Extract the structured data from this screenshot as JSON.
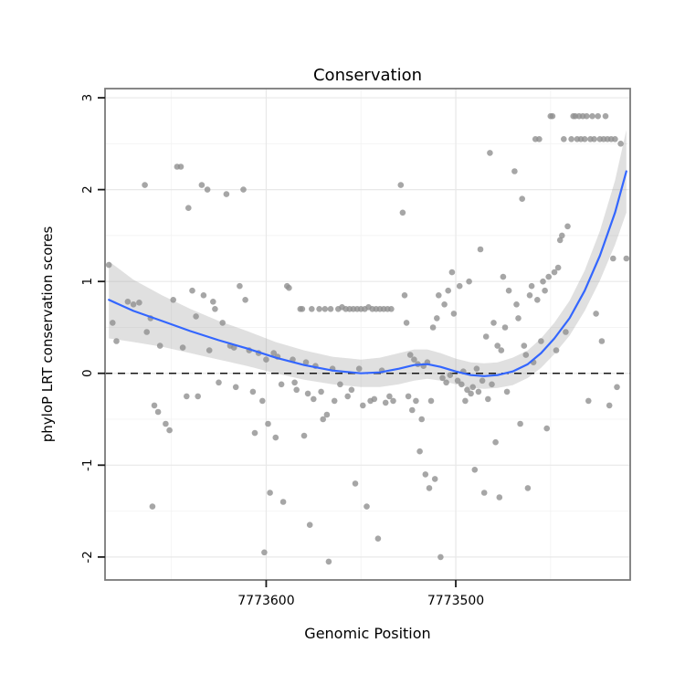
{
  "figure": {
    "title": "Conservation",
    "xlabel": "Genomic Position",
    "ylabel": "phyloP LRT conservation scores"
  },
  "chart_data": {
    "type": "scatter",
    "title": "Conservation",
    "xlabel": "Genomic Position",
    "ylabel": "phyloP LRT conservation scores",
    "x_reversed": true,
    "xlim": [
      7773685,
      7773408
    ],
    "ylim": [
      -2.25,
      3.1
    ],
    "grid": true,
    "legend_position": "none",
    "x_ticks": [
      {
        "value": 7773600,
        "label": "7773600"
      },
      {
        "value": 7773500,
        "label": "7773500"
      }
    ],
    "x_minor_ticks": [
      7773650,
      7773550,
      7773450
    ],
    "y_ticks": [
      {
        "value": -2,
        "label": "-2"
      },
      {
        "value": -1,
        "label": "-1"
      },
      {
        "value": 0,
        "label": "0"
      },
      {
        "value": 1,
        "label": "1"
      },
      {
        "value": 2,
        "label": "2"
      },
      {
        "value": 3,
        "label": "3"
      }
    ],
    "y_minor_ticks": [
      -1.5,
      -0.5,
      0.5,
      1.5,
      2.5
    ],
    "hline": {
      "y": 0,
      "style": "dashed",
      "color": "#141414"
    },
    "colors": {
      "point": "#909090",
      "smooth_line": "#3366FF",
      "ribbon": "#999999",
      "grid_major": "#e8e8e8",
      "grid_minor": "#f4f4f4",
      "panel_border": "#7a7a7a",
      "tick": "#1a1a1a",
      "tick_label": "#000000"
    },
    "smooth": {
      "x": [
        7773683,
        7773670,
        7773655,
        7773640,
        7773625,
        7773610,
        7773595,
        7773580,
        7773565,
        7773550,
        7773540,
        7773530,
        7773522,
        7773515,
        7773508,
        7773500,
        7773492,
        7773485,
        7773478,
        7773470,
        7773462,
        7773455,
        7773448,
        7773440,
        7773432,
        7773424,
        7773416,
        7773410
      ],
      "y": [
        0.8,
        0.68,
        0.57,
        0.46,
        0.36,
        0.27,
        0.17,
        0.09,
        0.03,
        0.0,
        0.01,
        0.05,
        0.09,
        0.1,
        0.07,
        0.02,
        -0.02,
        -0.03,
        -0.02,
        0.02,
        0.1,
        0.22,
        0.38,
        0.6,
        0.9,
        1.28,
        1.75,
        2.2
      ],
      "band": [
        0.42,
        0.34,
        0.28,
        0.24,
        0.21,
        0.19,
        0.17,
        0.16,
        0.15,
        0.15,
        0.16,
        0.17,
        0.17,
        0.16,
        0.15,
        0.14,
        0.14,
        0.14,
        0.14,
        0.15,
        0.15,
        0.16,
        0.17,
        0.19,
        0.22,
        0.27,
        0.35,
        0.45
      ]
    },
    "points": [
      [
        7773683,
        1.18
      ],
      [
        7773681,
        0.55
      ],
      [
        7773679,
        0.35
      ],
      [
        7773673,
        0.78
      ],
      [
        7773670,
        0.75
      ],
      [
        7773667,
        0.77
      ],
      [
        7773664,
        2.05
      ],
      [
        7773663,
        0.45
      ],
      [
        7773661,
        0.6
      ],
      [
        7773659,
        -0.35
      ],
      [
        7773657,
        -0.42
      ],
      [
        7773656,
        0.3
      ],
      [
        7773653,
        -0.55
      ],
      [
        7773651,
        -0.62
      ],
      [
        7773660,
        -1.45
      ],
      [
        7773649,
        0.8
      ],
      [
        7773647,
        2.25
      ],
      [
        7773645,
        2.25
      ],
      [
        7773644,
        0.28
      ],
      [
        7773642,
        -0.25
      ],
      [
        7773641,
        1.8
      ],
      [
        7773639,
        0.9
      ],
      [
        7773637,
        0.62
      ],
      [
        7773636,
        -0.25
      ],
      [
        7773634,
        2.05
      ],
      [
        7773633,
        0.85
      ],
      [
        7773631,
        2.0
      ],
      [
        7773630,
        0.25
      ],
      [
        7773628,
        0.78
      ],
      [
        7773627,
        0.7
      ],
      [
        7773625,
        -0.1
      ],
      [
        7773623,
        0.55
      ],
      [
        7773621,
        1.95
      ],
      [
        7773619,
        0.3
      ],
      [
        7773617,
        0.28
      ],
      [
        7773616,
        -0.15
      ],
      [
        7773614,
        0.95
      ],
      [
        7773612,
        2.0
      ],
      [
        7773611,
        0.8
      ],
      [
        7773609,
        0.25
      ],
      [
        7773607,
        -0.2
      ],
      [
        7773606,
        -0.65
      ],
      [
        7773604,
        0.22
      ],
      [
        7773602,
        -0.3
      ],
      [
        7773601,
        -1.95
      ],
      [
        7773600,
        0.15
      ],
      [
        7773599,
        -0.55
      ],
      [
        7773598,
        -1.3
      ],
      [
        7773596,
        0.22
      ],
      [
        7773595,
        -0.7
      ],
      [
        7773594,
        0.18
      ],
      [
        7773592,
        -0.12
      ],
      [
        7773591,
        -1.4
      ],
      [
        7773589,
        0.95
      ],
      [
        7773588,
        0.93
      ],
      [
        7773586,
        0.15
      ],
      [
        7773585,
        -0.1
      ],
      [
        7773584,
        -0.18
      ],
      [
        7773582,
        0.7
      ],
      [
        7773581,
        0.7
      ],
      [
        7773580,
        -0.68
      ],
      [
        7773579,
        0.12
      ],
      [
        7773578,
        -0.22
      ],
      [
        7773577,
        -1.65
      ],
      [
        7773576,
        0.7
      ],
      [
        7773575,
        -0.28
      ],
      [
        7773574,
        0.08
      ],
      [
        7773572,
        0.7
      ],
      [
        7773571,
        -0.2
      ],
      [
        7773570,
        -0.5
      ],
      [
        7773569,
        0.7
      ],
      [
        7773568,
        -0.45
      ],
      [
        7773567,
        -2.05
      ],
      [
        7773566,
        0.7
      ],
      [
        7773565,
        0.05
      ],
      [
        7773564,
        -0.3
      ],
      [
        7773562,
        0.7
      ],
      [
        7773561,
        -0.12
      ],
      [
        7773560,
        0.72
      ],
      [
        7773558,
        0.7
      ],
      [
        7773557,
        -0.25
      ],
      [
        7773556,
        0.7
      ],
      [
        7773555,
        -0.18
      ],
      [
        7773554,
        0.7
      ],
      [
        7773553,
        -1.2
      ],
      [
        7773552,
        0.7
      ],
      [
        7773551,
        0.05
      ],
      [
        7773550,
        0.7
      ],
      [
        7773549,
        -0.35
      ],
      [
        7773548,
        0.7
      ],
      [
        7773547,
        -1.45
      ],
      [
        7773546,
        0.72
      ],
      [
        7773545,
        -0.3
      ],
      [
        7773544,
        0.7
      ],
      [
        7773543,
        -0.28
      ],
      [
        7773542,
        0.7
      ],
      [
        7773541,
        -1.8
      ],
      [
        7773540,
        0.7
      ],
      [
        7773539,
        0.03
      ],
      [
        7773538,
        0.7
      ],
      [
        7773537,
        -0.32
      ],
      [
        7773536,
        0.7
      ],
      [
        7773535,
        -0.25
      ],
      [
        7773534,
        0.7
      ],
      [
        7773533,
        -0.3
      ],
      [
        7773529,
        2.05
      ],
      [
        7773528,
        1.75
      ],
      [
        7773527,
        0.85
      ],
      [
        7773526,
        0.55
      ],
      [
        7773525,
        -0.25
      ],
      [
        7773524,
        0.2
      ],
      [
        7773523,
        -0.4
      ],
      [
        7773522,
        0.15
      ],
      [
        7773521,
        -0.3
      ],
      [
        7773520,
        0.1
      ],
      [
        7773519,
        -0.85
      ],
      [
        7773518,
        -0.5
      ],
      [
        7773517,
        0.08
      ],
      [
        7773516,
        -1.1
      ],
      [
        7773515,
        0.12
      ],
      [
        7773514,
        -1.25
      ],
      [
        7773513,
        -0.3
      ],
      [
        7773512,
        0.5
      ],
      [
        7773511,
        -1.15
      ],
      [
        7773510,
        0.6
      ],
      [
        7773509,
        0.85
      ],
      [
        7773508,
        -2.0
      ],
      [
        7773507,
        -0.05
      ],
      [
        7773506,
        0.75
      ],
      [
        7773505,
        -0.1
      ],
      [
        7773504,
        0.9
      ],
      [
        7773503,
        -0.02
      ],
      [
        7773502,
        1.1
      ],
      [
        7773501,
        0.65
      ],
      [
        7773499,
        -0.08
      ],
      [
        7773498,
        0.95
      ],
      [
        7773497,
        -0.12
      ],
      [
        7773496,
        0.02
      ],
      [
        7773495,
        -0.3
      ],
      [
        7773494,
        -0.18
      ],
      [
        7773493,
        1.0
      ],
      [
        7773492,
        -0.22
      ],
      [
        7773491,
        -0.15
      ],
      [
        7773490,
        -1.05
      ],
      [
        7773489,
        0.05
      ],
      [
        7773488,
        -0.2
      ],
      [
        7773487,
        1.35
      ],
      [
        7773486,
        -0.08
      ],
      [
        7773485,
        -1.3
      ],
      [
        7773484,
        0.4
      ],
      [
        7773483,
        -0.28
      ],
      [
        7773482,
        2.4
      ],
      [
        7773481,
        -0.12
      ],
      [
        7773480,
        0.55
      ],
      [
        7773479,
        -0.75
      ],
      [
        7773478,
        0.3
      ],
      [
        7773477,
        -1.35
      ],
      [
        7773476,
        0.25
      ],
      [
        7773475,
        1.05
      ],
      [
        7773474,
        0.5
      ],
      [
        7773473,
        -0.2
      ],
      [
        7773472,
        0.9
      ],
      [
        7773469,
        2.2
      ],
      [
        7773468,
        0.75
      ],
      [
        7773467,
        0.6
      ],
      [
        7773466,
        -0.55
      ],
      [
        7773465,
        1.9
      ],
      [
        7773464,
        0.3
      ],
      [
        7773463,
        0.2
      ],
      [
        7773462,
        -1.25
      ],
      [
        7773461,
        0.85
      ],
      [
        7773460,
        0.95
      ],
      [
        7773459,
        0.12
      ],
      [
        7773458,
        2.55
      ],
      [
        7773457,
        0.8
      ],
      [
        7773456,
        2.55
      ],
      [
        7773455,
        0.35
      ],
      [
        7773454,
        1.0
      ],
      [
        7773453,
        0.9
      ],
      [
        7773452,
        -0.6
      ],
      [
        7773451,
        1.05
      ],
      [
        7773450,
        2.8
      ],
      [
        7773449,
        2.8
      ],
      [
        7773448,
        1.1
      ],
      [
        7773447,
        0.25
      ],
      [
        7773446,
        1.15
      ],
      [
        7773445,
        1.45
      ],
      [
        7773444,
        1.5
      ],
      [
        7773443,
        2.55
      ],
      [
        7773442,
        0.45
      ],
      [
        7773441,
        1.6
      ],
      [
        7773439,
        2.55
      ],
      [
        7773438,
        2.8
      ],
      [
        7773437,
        2.8
      ],
      [
        7773436,
        2.55
      ],
      [
        7773435,
        2.8
      ],
      [
        7773434,
        2.55
      ],
      [
        7773433,
        2.8
      ],
      [
        7773432,
        2.55
      ],
      [
        7773431,
        2.8
      ],
      [
        7773430,
        -0.3
      ],
      [
        7773429,
        2.55
      ],
      [
        7773428,
        2.8
      ],
      [
        7773427,
        2.55
      ],
      [
        7773426,
        0.65
      ],
      [
        7773425,
        2.8
      ],
      [
        7773424,
        2.55
      ],
      [
        7773423,
        0.35
      ],
      [
        7773422,
        2.55
      ],
      [
        7773421,
        2.8
      ],
      [
        7773420,
        2.55
      ],
      [
        7773419,
        -0.35
      ],
      [
        7773418,
        2.55
      ],
      [
        7773417,
        1.25
      ],
      [
        7773416,
        2.55
      ],
      [
        7773415,
        -0.15
      ],
      [
        7773413,
        2.5
      ],
      [
        7773410,
        1.25
      ]
    ]
  }
}
